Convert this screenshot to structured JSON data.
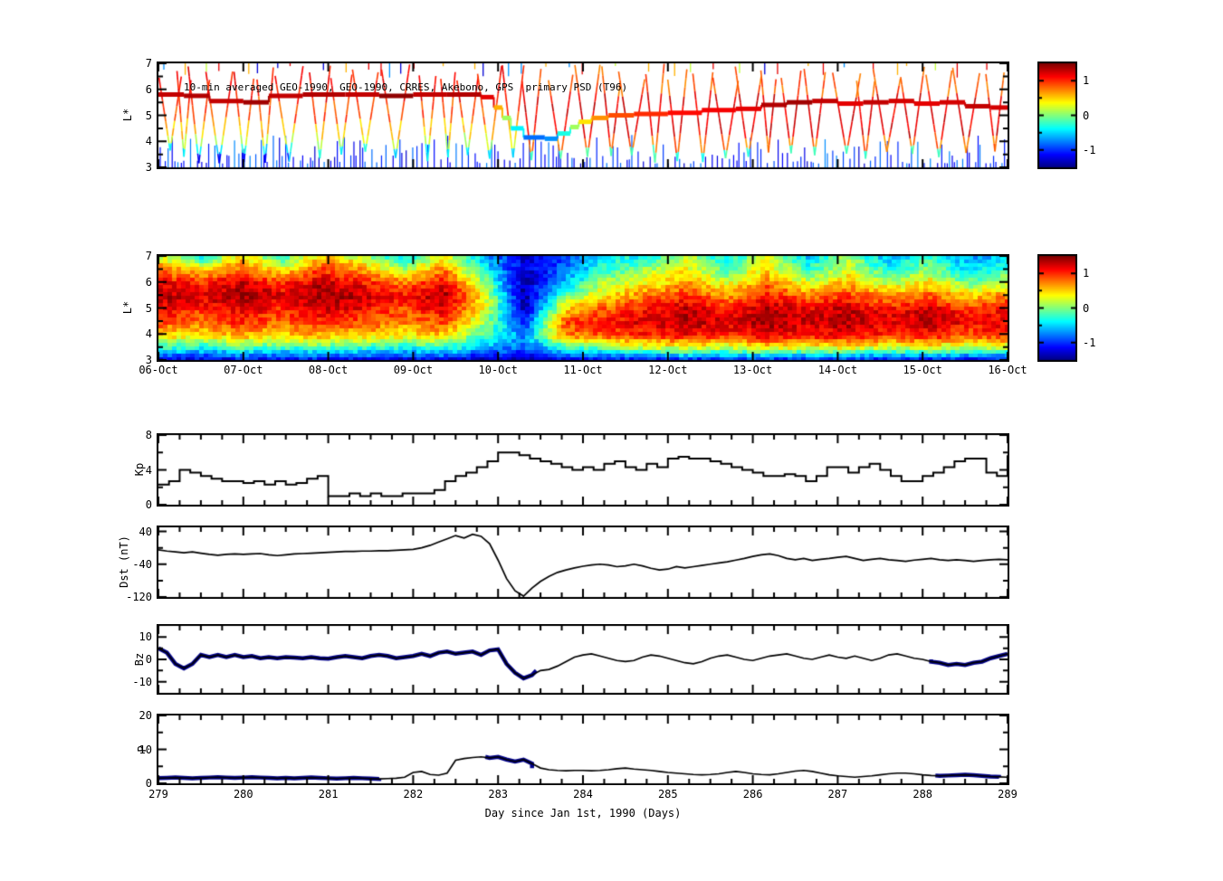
{
  "figure": {
    "background": "#ffffff",
    "xlabel": "Day since Jan 1st, 1990 (Days)",
    "x_day_ticks": [
      279,
      280,
      281,
      282,
      283,
      284,
      285,
      286,
      287,
      288,
      289
    ],
    "colorbar": {
      "ticks": [
        "1",
        "0",
        "-1"
      ],
      "tick_values": [
        1,
        0,
        -1
      ],
      "range": [
        -1.5,
        1.5
      ],
      "colormap": "jet"
    },
    "line_color": "#000000",
    "highlight_color": "#00008B"
  },
  "chart_data": [
    {
      "id": "psd_scatter",
      "type": "scatter",
      "title": "10-min averaged GEO-1990, GEO-1990, CRRES, Akebono, GPS  primary PSD (T96)",
      "ylabel": "L*",
      "ylim": [
        3,
        7
      ],
      "xlim": [
        279,
        289
      ],
      "yticks": [
        3,
        4,
        5,
        6,
        7
      ],
      "yticks_minor": [
        3.5,
        4.5,
        5.5,
        6.5
      ],
      "colorbar_ticks": [
        1,
        0,
        -1
      ],
      "storm_day": 283.3,
      "seed": 20,
      "geo_track": [
        [
          279.0,
          5.8,
          1.3
        ],
        [
          279.3,
          5.75,
          1.35
        ],
        [
          279.6,
          5.55,
          1.3
        ],
        [
          280.0,
          5.5,
          1.4
        ],
        [
          280.3,
          5.75,
          1.3
        ],
        [
          280.7,
          5.8,
          1.35
        ],
        [
          281.2,
          5.8,
          1.3
        ],
        [
          281.6,
          5.75,
          1.45
        ],
        [
          282.0,
          5.8,
          1.3
        ],
        [
          282.4,
          5.8,
          1.35
        ],
        [
          282.8,
          5.7,
          1.2
        ],
        [
          282.95,
          5.3,
          0.6
        ],
        [
          283.05,
          4.9,
          0.1
        ],
        [
          283.15,
          4.5,
          -0.4
        ],
        [
          283.3,
          4.15,
          -0.8
        ],
        [
          283.55,
          4.1,
          -0.7
        ],
        [
          283.7,
          4.3,
          -0.3
        ],
        [
          283.85,
          4.55,
          0.1
        ],
        [
          283.95,
          4.75,
          0.45
        ],
        [
          284.1,
          4.9,
          0.7
        ],
        [
          284.3,
          5.0,
          0.9
        ],
        [
          284.6,
          5.05,
          1.0
        ],
        [
          285.0,
          5.1,
          1.1
        ],
        [
          285.4,
          5.2,
          1.15
        ],
        [
          285.8,
          5.25,
          1.2
        ],
        [
          286.1,
          5.4,
          1.35
        ],
        [
          286.4,
          5.5,
          1.4
        ],
        [
          286.7,
          5.55,
          1.3
        ],
        [
          287.0,
          5.45,
          1.2
        ],
        [
          287.3,
          5.5,
          1.3
        ],
        [
          287.6,
          5.55,
          1.25
        ],
        [
          287.9,
          5.45,
          1.2
        ],
        [
          288.2,
          5.5,
          1.25
        ],
        [
          288.5,
          5.35,
          1.3
        ],
        [
          288.8,
          5.3,
          1.25
        ],
        [
          289.0,
          5.35,
          1.3
        ]
      ],
      "pass_bands_prestorm": [
        [
          5.6,
          7,
          1.1
        ],
        [
          4.8,
          5.6,
          0.9
        ],
        [
          4.2,
          4.8,
          0.55
        ],
        [
          3.8,
          4.2,
          0.2
        ],
        [
          3.4,
          3.8,
          -0.4
        ],
        [
          3.0,
          3.4,
          -1.1
        ]
      ],
      "pass_bands_poststorm": [
        [
          5.8,
          7,
          0.85
        ],
        [
          4.2,
          5.8,
          1.2
        ],
        [
          3.7,
          4.2,
          0.8
        ],
        [
          3.3,
          3.7,
          -0.2
        ],
        [
          3.0,
          3.3,
          -1.1
        ]
      ]
    },
    {
      "id": "psd_spectrogram",
      "type": "heatmap",
      "ylabel": "L*",
      "ylim": [
        3,
        7
      ],
      "xlim": [
        279,
        289
      ],
      "yticks": [
        3,
        4,
        5,
        6,
        7
      ],
      "yticks_minor": [
        3.5,
        4.5,
        5.5,
        6.5
      ],
      "x_categories": [
        "06-Oct",
        "07-Oct",
        "08-Oct",
        "09-Oct",
        "10-Oct",
        "11-Oct",
        "12-Oct",
        "13-Oct",
        "14-Oct",
        "15-Oct",
        "16-Oct"
      ],
      "grid_rows_L": [
        7,
        6.5,
        6,
        5.5,
        5,
        4.5,
        4,
        3.5,
        3
      ],
      "noise": 0.3,
      "seed": 7,
      "grid": [
        [
          0.3,
          -0.3,
          0.5,
          -0.2,
          0.6,
          0.2,
          -0.4,
          0.4,
          -0.6,
          -1.2,
          -0.9,
          -0.4,
          -0.3,
          0.2,
          -0.4,
          0.3,
          -0.5,
          0.1,
          -0.6,
          -0.2,
          -0.7,
          -0.4
        ],
        [
          0.8,
          0.5,
          0.9,
          0.4,
          1.0,
          0.7,
          0.2,
          0.8,
          -0.3,
          -1.3,
          -0.8,
          -0.2,
          0.1,
          0.4,
          -0.1,
          0.5,
          -0.2,
          0.3,
          -0.3,
          0.1,
          -0.5,
          -0.2
        ],
        [
          1.2,
          1.0,
          1.3,
          1.0,
          1.3,
          1.1,
          0.8,
          1.2,
          0.1,
          -1.4,
          -0.5,
          0.2,
          0.4,
          0.7,
          0.3,
          0.8,
          0.3,
          0.6,
          0.2,
          0.5,
          0.0,
          0.3
        ],
        [
          1.4,
          1.2,
          1.45,
          1.2,
          1.45,
          1.3,
          1.1,
          1.4,
          0.4,
          -1.4,
          0.0,
          0.5,
          0.8,
          1.0,
          0.7,
          1.1,
          0.8,
          1.0,
          0.7,
          0.9,
          0.5,
          0.8
        ],
        [
          1.1,
          1.0,
          1.2,
          1.0,
          1.25,
          1.1,
          0.9,
          1.2,
          0.3,
          -1.3,
          0.5,
          0.9,
          1.1,
          1.3,
          1.1,
          1.35,
          1.2,
          1.3,
          1.1,
          1.25,
          1.0,
          1.1
        ],
        [
          0.9,
          0.8,
          1.0,
          0.8,
          1.0,
          0.9,
          0.7,
          0.9,
          0.1,
          -1.0,
          0.9,
          1.1,
          1.2,
          1.35,
          1.2,
          1.4,
          1.25,
          1.35,
          1.2,
          1.3,
          1.1,
          1.2
        ],
        [
          0.5,
          0.4,
          0.6,
          0.5,
          0.6,
          0.5,
          0.4,
          0.5,
          -0.2,
          -0.7,
          0.7,
          0.9,
          1.0,
          1.1,
          1.0,
          1.2,
          1.1,
          1.15,
          1.0,
          1.1,
          0.9,
          1.0
        ],
        [
          -0.3,
          -0.4,
          -0.2,
          -0.3,
          -0.2,
          -0.3,
          -0.4,
          -0.3,
          -0.6,
          -0.9,
          -0.3,
          -0.1,
          0.1,
          0.2,
          0.1,
          0.3,
          0.2,
          0.3,
          0.1,
          0.2,
          0.0,
          0.1
        ],
        [
          -1.3,
          -1.35,
          -1.25,
          -1.3,
          -1.25,
          -1.3,
          -1.35,
          -1.3,
          -1.4,
          -1.45,
          -1.35,
          -1.3,
          -1.25,
          -1.2,
          -1.25,
          -1.2,
          -1.25,
          -1.2,
          -1.3,
          -1.25,
          -1.3,
          -1.25
        ]
      ]
    },
    {
      "id": "kp",
      "type": "line",
      "mode": "step",
      "ylabel": "Kp",
      "ylim": [
        0,
        8
      ],
      "yticks": [
        0,
        4,
        8
      ],
      "yticks_minor": [
        2,
        6
      ],
      "x_start": 279,
      "x_step": 0.125,
      "values": [
        2.3,
        2.7,
        4.0,
        3.7,
        3.3,
        3.0,
        2.7,
        2.7,
        2.5,
        2.7,
        2.3,
        2.7,
        2.3,
        2.5,
        3.0,
        3.3,
        1.0,
        1.0,
        1.3,
        1.0,
        1.3,
        1.0,
        1.0,
        1.3,
        1.3,
        1.3,
        1.7,
        2.7,
        3.3,
        3.7,
        4.3,
        5.0,
        6.0,
        6.0,
        5.7,
        5.3,
        5.0,
        4.7,
        4.3,
        4.0,
        4.3,
        4.0,
        4.7,
        5.0,
        4.3,
        4.0,
        4.7,
        4.3,
        5.3,
        5.5,
        5.3,
        5.3,
        5.0,
        4.7,
        4.3,
        4.0,
        3.7,
        3.3,
        3.3,
        3.5,
        3.3,
        2.7,
        3.3,
        4.3,
        4.3,
        3.7,
        4.3,
        4.7,
        4.0,
        3.3,
        2.7,
        2.7,
        3.3,
        3.7,
        4.3,
        5.0,
        5.3,
        5.3,
        3.7,
        3.3,
        5.7
      ]
    },
    {
      "id": "dst",
      "type": "line",
      "ylabel": "Dst (nT)",
      "ylim": [
        -120,
        50
      ],
      "yticks": [
        40,
        -40,
        -120
      ],
      "yticks_minor": [
        0,
        -80
      ],
      "x_start": 279,
      "x_step": 0.1,
      "values": [
        -5,
        -8,
        -10,
        -12,
        -10,
        -13,
        -16,
        -18,
        -16,
        -15,
        -16,
        -15,
        -14,
        -17,
        -19,
        -17,
        -15,
        -14,
        -13,
        -12,
        -11,
        -10,
        -9,
        -9,
        -8,
        -8,
        -7,
        -7,
        -6,
        -5,
        -4,
        0,
        6,
        14,
        22,
        30,
        24,
        33,
        28,
        10,
        -30,
        -75,
        -105,
        -118,
        -98,
        -82,
        -70,
        -60,
        -54,
        -49,
        -45,
        -42,
        -40,
        -42,
        -46,
        -44,
        -40,
        -44,
        -50,
        -54,
        -52,
        -46,
        -49,
        -46,
        -43,
        -40,
        -37,
        -34,
        -30,
        -26,
        -21,
        -17,
        -15,
        -19,
        -26,
        -29,
        -26,
        -31,
        -28,
        -26,
        -23,
        -21,
        -26,
        -31,
        -28,
        -26,
        -29,
        -31,
        -33,
        -30,
        -28,
        -26,
        -29,
        -31,
        -29,
        -31,
        -33,
        -31,
        -29,
        -28,
        -29
      ]
    },
    {
      "id": "bz",
      "type": "line",
      "ylabel": "Bz",
      "ylim": [
        -15,
        15
      ],
      "yticks": [
        10,
        0,
        -10
      ],
      "yticks_minor": [
        5,
        -5
      ],
      "x_start": 279,
      "x_step": 0.1,
      "highlight_segments": [
        [
          279.0,
          283.45
        ],
        [
          288.1,
          289.0
        ]
      ],
      "values": [
        5,
        3,
        -2,
        -4,
        -2,
        2,
        1,
        2,
        1,
        2,
        1,
        1.5,
        0.5,
        1,
        0.5,
        1,
        0.8,
        0.5,
        1,
        0.5,
        0.3,
        1,
        1.5,
        1,
        0.5,
        1.5,
        2,
        1.5,
        0.5,
        1,
        1.5,
        2.5,
        1.5,
        3,
        3.5,
        2.5,
        3,
        3.5,
        2,
        4,
        4.5,
        -2,
        -6,
        -8.5,
        -7,
        -5,
        -4.5,
        -3,
        -1,
        1,
        2,
        2.5,
        1.5,
        0.5,
        -0.5,
        -1,
        -0.5,
        1,
        2,
        1.5,
        0.5,
        -0.5,
        -1.5,
        -2,
        -1,
        0.5,
        1.5,
        2,
        1,
        0,
        -0.5,
        0.5,
        1.5,
        2,
        2.5,
        1.5,
        0.5,
        0,
        1,
        2,
        1,
        0.5,
        1.5,
        0.5,
        -0.5,
        0.5,
        2,
        2.5,
        1.5,
        0.5,
        0,
        -1,
        -1.5,
        -2.5,
        -2,
        -2.5,
        -1.5,
        -1,
        0.5,
        1.5,
        2.5
      ]
    },
    {
      "id": "p",
      "type": "line",
      "ylabel": "P",
      "ylim": [
        0,
        20
      ],
      "yticks": [
        0,
        10,
        20
      ],
      "yticks_minor": [
        5,
        15
      ],
      "x_start": 279,
      "x_step": 0.1,
      "highlight_segments": [
        [
          279.0,
          281.6
        ],
        [
          282.85,
          283.4
        ],
        [
          288.15,
          288.9
        ]
      ],
      "values": [
        1.5,
        1.6,
        1.7,
        1.6,
        1.5,
        1.6,
        1.7,
        1.8,
        1.7,
        1.6,
        1.7,
        1.8,
        1.7,
        1.6,
        1.5,
        1.6,
        1.5,
        1.6,
        1.7,
        1.6,
        1.5,
        1.4,
        1.5,
        1.6,
        1.5,
        1.4,
        1.3,
        1.4,
        1.5,
        1.8,
        3.2,
        3.5,
        2.6,
        2.4,
        3.0,
        6.8,
        7.3,
        7.6,
        7.8,
        7.5,
        7.8,
        7.0,
        6.4,
        7.0,
        5.8,
        4.5,
        4.0,
        3.8,
        3.7,
        3.8,
        3.8,
        3.7,
        3.8,
        4.0,
        4.3,
        4.5,
        4.2,
        4.0,
        3.8,
        3.5,
        3.2,
        3.0,
        2.8,
        2.6,
        2.5,
        2.6,
        2.8,
        3.2,
        3.5,
        3.2,
        2.8,
        2.6,
        2.5,
        2.8,
        3.2,
        3.6,
        3.8,
        3.5,
        3.0,
        2.5,
        2.2,
        2.0,
        1.8,
        2.0,
        2.2,
        2.5,
        2.8,
        3.0,
        3.0,
        2.8,
        2.5,
        2.3,
        2.2,
        2.3,
        2.4,
        2.5,
        2.4,
        2.2,
        2.0,
        1.9,
        1.8
      ]
    }
  ]
}
